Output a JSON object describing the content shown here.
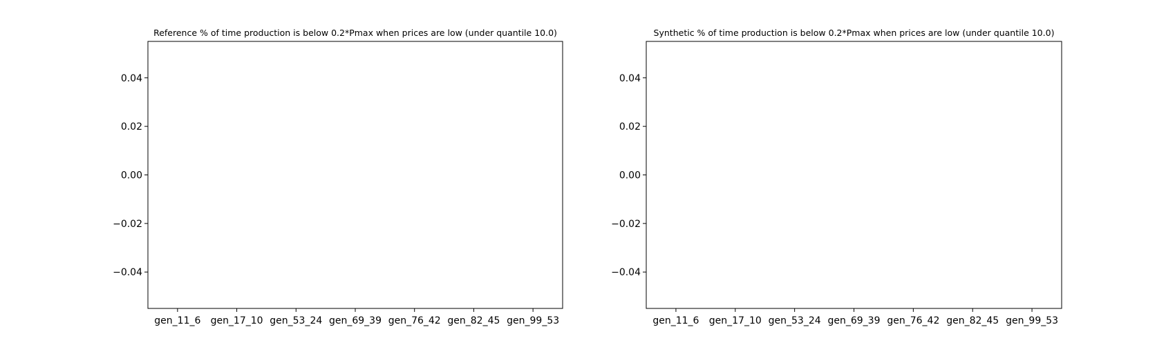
{
  "chart_data": [
    {
      "type": "bar",
      "title": "Reference % of time production is below 0.2*Pmax when prices are low (under quantile 10.0)",
      "xlabel": "",
      "ylabel": "",
      "categories": [
        "gen_11_6",
        "gen_17_10",
        "gen_53_24",
        "gen_69_39",
        "gen_76_42",
        "gen_82_45",
        "gen_99_53"
      ],
      "values": [
        0,
        0,
        0,
        0,
        0,
        0,
        0
      ],
      "ylim": [
        -0.055,
        0.055
      ],
      "yticks": [
        0.04,
        0.02,
        0.0,
        -0.02,
        -0.04
      ],
      "ytick_labels": [
        "0.04",
        "0.02",
        "0.00",
        "−0.02",
        "−0.04"
      ],
      "grid": false,
      "legend": "none"
    },
    {
      "type": "bar",
      "title": "Synthetic % of time production is below 0.2*Pmax when prices are low (under quantile 10.0)",
      "xlabel": "",
      "ylabel": "",
      "categories": [
        "gen_11_6",
        "gen_17_10",
        "gen_53_24",
        "gen_69_39",
        "gen_76_42",
        "gen_82_45",
        "gen_99_53"
      ],
      "values": [
        0,
        0,
        0,
        0,
        0,
        0,
        0
      ],
      "ylim": [
        -0.055,
        0.055
      ],
      "yticks": [
        0.04,
        0.02,
        0.0,
        -0.02,
        -0.04
      ],
      "ytick_labels": [
        "0.04",
        "0.02",
        "0.00",
        "−0.02",
        "−0.04"
      ],
      "grid": false,
      "legend": "none"
    }
  ],
  "colors": {
    "axes": "#000000",
    "bar": "#1f77b4",
    "background": "#ffffff"
  }
}
